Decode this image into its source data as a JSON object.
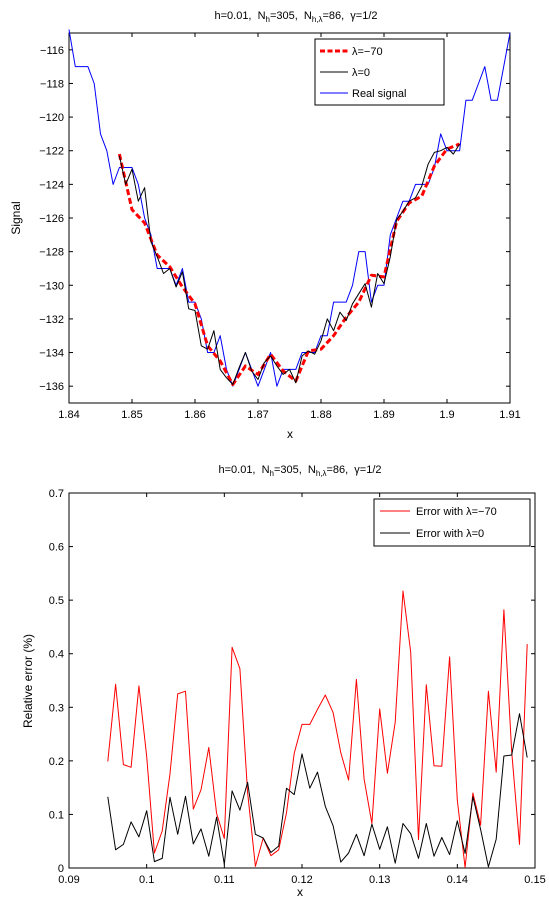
{
  "chart_data": [
    {
      "type": "line",
      "title": {
        "h": "h=0.01,",
        "N": "N",
        "Nh_sub": "h",
        "Nh_val": "=305,",
        "Nhl_sub": "h,λ",
        "Nhl_val": "=86,",
        "gamma": "γ=1/2"
      },
      "xlabel": "x",
      "ylabel": "Signal",
      "xlim": [
        1.84,
        1.91
      ],
      "ylim": [
        -137,
        -115
      ],
      "xticks": [
        "1.84",
        "1.85",
        "1.86",
        "1.87",
        "1.88",
        "1.89",
        "1.9",
        "1.91"
      ],
      "yticks": [
        "−116",
        "−118",
        "−120",
        "−122",
        "−124",
        "−126",
        "−128",
        "−130",
        "−132",
        "−134",
        "−136"
      ],
      "legend_position": "top-right",
      "series": [
        {
          "name": "λ=−70",
          "color": "#ff0000",
          "style": "dashed",
          "x": [
            1.848,
            1.85,
            1.852,
            1.854,
            1.856,
            1.858,
            1.86,
            1.862,
            1.864,
            1.866,
            1.868,
            1.87,
            1.872,
            1.874,
            1.876,
            1.878,
            1.88,
            1.882,
            1.884,
            1.886,
            1.888,
            1.89,
            1.892,
            1.894,
            1.896,
            1.898,
            1.9,
            1.902
          ],
          "y": [
            -122.2,
            -125.5,
            -126.3,
            -128.2,
            -128.9,
            -130.1,
            -131.1,
            -133.6,
            -134.5,
            -135.9,
            -134.8,
            -135.3,
            -134.1,
            -135.1,
            -135.7,
            -133.9,
            -133.8,
            -133.0,
            -131.9,
            -131.0,
            -129.4,
            -129.5,
            -126.2,
            -125.1,
            -124.7,
            -122.9,
            -121.9,
            -121.6
          ]
        },
        {
          "name": "λ=0",
          "color": "#000000",
          "style": "solid",
          "x": [
            1.848,
            1.849,
            1.85,
            1.851,
            1.852,
            1.853,
            1.854,
            1.855,
            1.856,
            1.857,
            1.858,
            1.859,
            1.86,
            1.861,
            1.862,
            1.863,
            1.864,
            1.865,
            1.866,
            1.867,
            1.868,
            1.869,
            1.87,
            1.871,
            1.872,
            1.873,
            1.874,
            1.875,
            1.876,
            1.877,
            1.878,
            1.879,
            1.88,
            1.881,
            1.882,
            1.883,
            1.884,
            1.885,
            1.886,
            1.887,
            1.888,
            1.889,
            1.89,
            1.891,
            1.892,
            1.893,
            1.894,
            1.895,
            1.896,
            1.897,
            1.898,
            1.899,
            1.9,
            1.901,
            1.902
          ],
          "y": [
            -122.3,
            -124.0,
            -123.1,
            -125.0,
            -124.2,
            -127.4,
            -128.3,
            -129.3,
            -129.0,
            -130.1,
            -129.2,
            -131.4,
            -131.5,
            -133.6,
            -133.8,
            -132.7,
            -135.0,
            -135.5,
            -135.9,
            -134.9,
            -134.0,
            -135.1,
            -135.6,
            -134.6,
            -134.2,
            -134.8,
            -135.3,
            -135.0,
            -135.8,
            -134.2,
            -133.9,
            -134.1,
            -133.3,
            -132.0,
            -132.7,
            -131.6,
            -132.1,
            -131.1,
            -130.5,
            -129.9,
            -131.3,
            -129.3,
            -129.9,
            -128.3,
            -126.1,
            -125.6,
            -125.0,
            -124.8,
            -124.1,
            -122.8,
            -122.1,
            -122.0,
            -121.8,
            -122.2,
            -121.6
          ]
        },
        {
          "name": "Real signal",
          "color": "#0000ff",
          "style": "solid",
          "x": [
            1.84,
            1.841,
            1.842,
            1.843,
            1.844,
            1.845,
            1.846,
            1.847,
            1.848,
            1.849,
            1.85,
            1.851,
            1.852,
            1.853,
            1.854,
            1.855,
            1.856,
            1.857,
            1.858,
            1.859,
            1.86,
            1.861,
            1.862,
            1.863,
            1.864,
            1.865,
            1.866,
            1.867,
            1.868,
            1.869,
            1.87,
            1.871,
            1.872,
            1.873,
            1.874,
            1.875,
            1.876,
            1.877,
            1.878,
            1.879,
            1.88,
            1.881,
            1.882,
            1.883,
            1.884,
            1.885,
            1.886,
            1.887,
            1.888,
            1.889,
            1.89,
            1.891,
            1.892,
            1.893,
            1.894,
            1.895,
            1.896,
            1.897,
            1.898,
            1.899,
            1.9,
            1.901,
            1.902,
            1.903,
            1.904,
            1.905,
            1.906,
            1.907,
            1.908,
            1.909,
            1.91
          ],
          "y": [
            -114.8,
            -117,
            -117,
            -117,
            -118,
            -121,
            -122,
            -124,
            -123,
            -123,
            -123,
            -124,
            -126,
            -127,
            -129,
            -129,
            -129,
            -130,
            -129,
            -131,
            -131,
            -132,
            -134,
            -134,
            -133,
            -135,
            -136,
            -135,
            -134,
            -135,
            -136,
            -135,
            -134,
            -136,
            -135,
            -135,
            -135,
            -134,
            -134,
            -134,
            -133,
            -133,
            -131,
            -131,
            -131,
            -130,
            -128,
            -128,
            -131,
            -130,
            -130,
            -127,
            -126,
            -125,
            -125,
            -124,
            -124,
            -124,
            -123,
            -121,
            -122,
            -122,
            -122,
            -119,
            -119,
            -118,
            -117,
            -119,
            -119,
            -117,
            -115
          ]
        }
      ]
    },
    {
      "type": "line",
      "title": {
        "h": "h=0.01,",
        "N": "N",
        "Nh_sub": "h",
        "Nh_val": "=305,",
        "Nhl_sub": "h,λ",
        "Nhl_val": "=86,",
        "gamma": "γ=1/2"
      },
      "xlabel": "x",
      "ylabel": "Relative error (%)",
      "xlim": [
        0.09,
        0.15
      ],
      "ylim": [
        0,
        0.7
      ],
      "xticks": [
        "0.09",
        "0.1",
        "0.11",
        "0.12",
        "0.13",
        "0.14",
        "0.15"
      ],
      "yticks": [
        "0",
        "0.1",
        "0.2",
        "0.3",
        "0.4",
        "0.5",
        "0.6",
        "0.7"
      ],
      "legend_position": "top-right",
      "series": [
        {
          "name": "Error with λ=−70",
          "color": "#ff0000",
          "x": [
            0.095,
            0.096,
            0.097,
            0.098,
            0.099,
            0.1,
            0.101,
            0.102,
            0.103,
            0.104,
            0.105,
            0.106,
            0.107,
            0.108,
            0.109,
            0.11,
            0.111,
            0.112,
            0.113,
            0.114,
            0.115,
            0.116,
            0.117,
            0.118,
            0.119,
            0.12,
            0.121,
            0.122,
            0.123,
            0.124,
            0.125,
            0.126,
            0.127,
            0.128,
            0.129,
            0.13,
            0.131,
            0.132,
            0.133,
            0.134,
            0.135,
            0.136,
            0.137,
            0.138,
            0.139,
            0.14,
            0.141,
            0.142,
            0.143,
            0.144,
            0.145,
            0.146,
            0.147,
            0.148,
            0.149
          ],
          "y": [
            0.199,
            0.343,
            0.193,
            0.188,
            0.34,
            0.208,
            0.028,
            0.069,
            0.176,
            0.325,
            0.33,
            0.11,
            0.146,
            0.225,
            0.102,
            0.055,
            0.412,
            0.372,
            0.141,
            0.003,
            0.056,
            0.023,
            0.034,
            0.103,
            0.214,
            0.268,
            0.268,
            0.296,
            0.323,
            0.29,
            0.215,
            0.164,
            0.352,
            0.166,
            0.083,
            0.297,
            0.177,
            0.272,
            0.517,
            0.403,
            0.053,
            0.342,
            0.191,
            0.19,
            0.394,
            0.127,
            0.001,
            0.14,
            0.08,
            0.33,
            0.179,
            0.482,
            0.217,
            0.044,
            0.418
          ]
        },
        {
          "name": "Error with λ=0",
          "color": "#000000",
          "x": [
            0.095,
            0.096,
            0.097,
            0.098,
            0.099,
            0.1,
            0.101,
            0.102,
            0.103,
            0.104,
            0.105,
            0.106,
            0.107,
            0.108,
            0.109,
            0.11,
            0.111,
            0.112,
            0.113,
            0.114,
            0.115,
            0.116,
            0.117,
            0.118,
            0.119,
            0.12,
            0.121,
            0.122,
            0.123,
            0.124,
            0.125,
            0.126,
            0.127,
            0.128,
            0.129,
            0.13,
            0.131,
            0.132,
            0.133,
            0.134,
            0.135,
            0.136,
            0.137,
            0.138,
            0.139,
            0.14,
            0.141,
            0.142,
            0.143,
            0.144,
            0.145,
            0.146,
            0.147,
            0.148,
            0.149
          ],
          "y": [
            0.133,
            0.034,
            0.044,
            0.086,
            0.058,
            0.107,
            0.012,
            0.018,
            0.132,
            0.063,
            0.134,
            0.045,
            0.073,
            0.022,
            0.095,
            0.007,
            0.144,
            0.108,
            0.16,
            0.063,
            0.056,
            0.029,
            0.041,
            0.149,
            0.137,
            0.213,
            0.149,
            0.179,
            0.115,
            0.079,
            0.011,
            0.028,
            0.063,
            0.023,
            0.082,
            0.035,
            0.077,
            0.009,
            0.083,
            0.064,
            0.018,
            0.083,
            0.022,
            0.057,
            0.025,
            0.088,
            0.027,
            0.133,
            0.072,
            0.002,
            0.054,
            0.209,
            0.211,
            0.288,
            0.206
          ]
        }
      ]
    }
  ]
}
